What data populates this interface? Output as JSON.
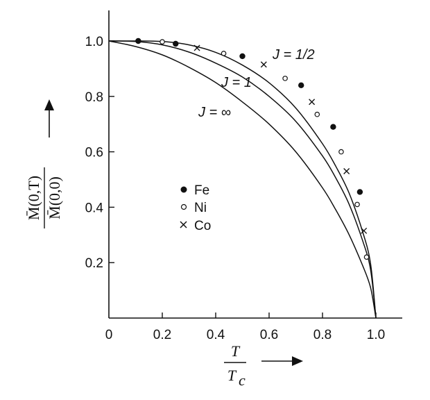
{
  "chart_data": {
    "type": "line",
    "x_axis": {
      "range": [
        0,
        1.05
      ],
      "ticks": [
        0,
        0.2,
        0.4,
        0.6,
        0.8,
        1.0
      ],
      "tick_labels": [
        "0",
        "0.2",
        "0.4",
        "0.6",
        "0.8",
        "1.0"
      ],
      "label_num": "T",
      "label_den": "T",
      "label_den_sub": "c"
    },
    "y_axis": {
      "range": [
        0,
        1.1
      ],
      "ticks": [
        0.2,
        0.4,
        0.6,
        0.8,
        1.0
      ],
      "tick_labels": [
        "0.2",
        "0.4",
        "0.6",
        "0.8",
        "1.0"
      ],
      "label_num": "M̄(0,T)",
      "label_den": "M̄(0,0)"
    },
    "curves": [
      {
        "label": "J = 1/2",
        "x": [
          0,
          0.1,
          0.2,
          0.3,
          0.4,
          0.5,
          0.6,
          0.7,
          0.8,
          0.85,
          0.9,
          0.95,
          0.98,
          1.0
        ],
        "y": [
          1.0,
          1.0,
          0.998,
          0.986,
          0.959,
          0.913,
          0.849,
          0.758,
          0.629,
          0.547,
          0.45,
          0.312,
          0.196,
          0.0
        ]
      },
      {
        "label": "J = 1",
        "x": [
          0,
          0.1,
          0.2,
          0.3,
          0.4,
          0.5,
          0.6,
          0.7,
          0.8,
          0.85,
          0.9,
          0.95,
          0.98,
          1.0
        ],
        "y": [
          1.0,
          0.998,
          0.986,
          0.96,
          0.92,
          0.87,
          0.8,
          0.71,
          0.585,
          0.505,
          0.41,
          0.28,
          0.175,
          0.0
        ]
      },
      {
        "label": "J = ∞",
        "x": [
          0,
          0.1,
          0.2,
          0.3,
          0.4,
          0.5,
          0.6,
          0.7,
          0.8,
          0.85,
          0.9,
          0.95,
          0.98,
          1.0
        ],
        "y": [
          1.0,
          0.98,
          0.95,
          0.905,
          0.85,
          0.78,
          0.7,
          0.6,
          0.47,
          0.39,
          0.3,
          0.19,
          0.11,
          0.0
        ]
      }
    ],
    "series": [
      {
        "name": "Fe",
        "marker": "filled-circle",
        "points": [
          [
            0.11,
            1.0
          ],
          [
            0.25,
            0.99
          ],
          [
            0.5,
            0.945
          ],
          [
            0.72,
            0.84
          ],
          [
            0.84,
            0.69
          ],
          [
            0.94,
            0.455
          ]
        ]
      },
      {
        "name": "Ni",
        "marker": "open-circle",
        "points": [
          [
            0.2,
            0.997
          ],
          [
            0.43,
            0.955
          ],
          [
            0.66,
            0.865
          ],
          [
            0.78,
            0.735
          ],
          [
            0.87,
            0.6
          ],
          [
            0.93,
            0.41
          ],
          [
            0.965,
            0.22
          ]
        ]
      },
      {
        "name": "Co",
        "marker": "cross",
        "points": [
          [
            0.33,
            0.975
          ],
          [
            0.58,
            0.915
          ],
          [
            0.76,
            0.78
          ],
          [
            0.89,
            0.53
          ],
          [
            0.955,
            0.315
          ]
        ]
      }
    ],
    "grid": false,
    "legend": "center-left"
  }
}
